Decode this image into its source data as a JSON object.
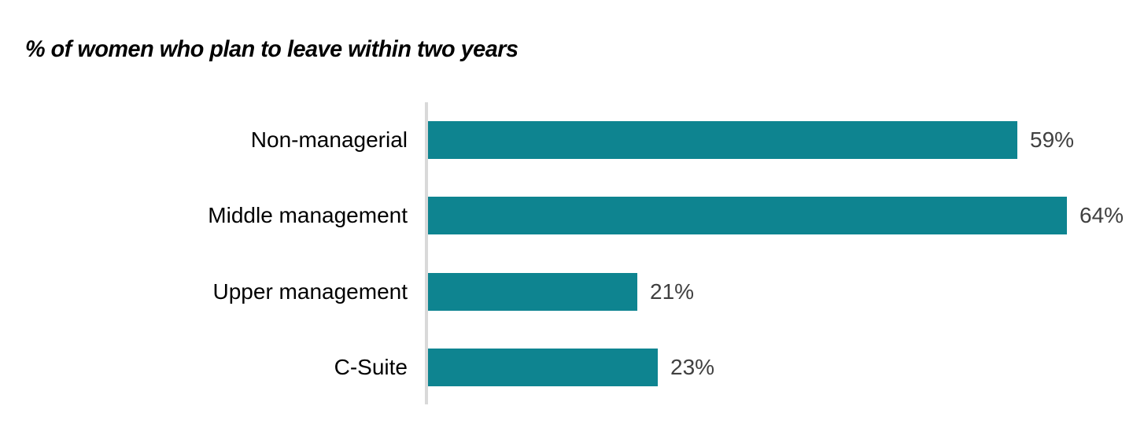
{
  "title": "% of women who plan to leave within two years",
  "chart_data": {
    "type": "bar",
    "orientation": "horizontal",
    "title": "% of women who plan to leave within two years",
    "categories": [
      "Non-managerial",
      "Middle management",
      "Upper management",
      "C-Suite"
    ],
    "values": [
      59,
      64,
      21,
      23
    ],
    "value_labels": [
      "59%",
      "64%",
      "21%",
      "23%"
    ],
    "xlabel": "",
    "ylabel": "",
    "xlim": [
      0,
      70
    ],
    "grid": false,
    "legend": false,
    "colors": {
      "bar": "#0E8490",
      "axis_line": "#D9D9D9",
      "category_label": "#000000",
      "value_label": "#404040",
      "title": "#000000"
    }
  }
}
